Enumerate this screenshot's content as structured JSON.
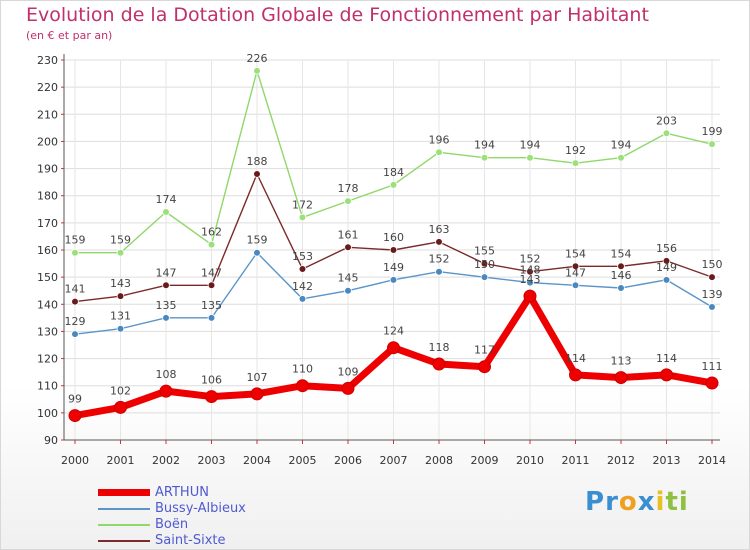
{
  "chart_data": {
    "type": "line",
    "title": "Evolution de la Dotation Globale de Fonctionnement par Habitant",
    "subtitle": "(en € et par an)",
    "xlabel": "",
    "ylabel": "",
    "ylim": [
      90,
      230
    ],
    "yticks": [
      90,
      100,
      110,
      120,
      130,
      140,
      150,
      160,
      170,
      180,
      190,
      200,
      210,
      220,
      230
    ],
    "x": [
      "2000",
      "2001",
      "2002",
      "2003",
      "2004",
      "2005",
      "2006",
      "2007",
      "2008",
      "2009",
      "2010",
      "2011",
      "2012",
      "2013",
      "2014"
    ],
    "legend_position": "bottom-left",
    "series": [
      {
        "name": "Boën",
        "color": "#8fd86a",
        "marker": "#9be07a",
        "values": [
          159,
          159,
          174,
          162,
          226,
          172,
          178,
          184,
          196,
          194,
          194,
          192,
          194,
          203,
          199
        ]
      },
      {
        "name": "Saint-Sixte",
        "color": "#7a2a2a",
        "marker": "#6a1a1a",
        "values": [
          141,
          143,
          147,
          147,
          188,
          153,
          161,
          160,
          163,
          155,
          152,
          154,
          154,
          156,
          150
        ]
      },
      {
        "name": "Bussy-Albieux",
        "color": "#5a94c8",
        "marker": "#4a88c0",
        "values": [
          129,
          131,
          135,
          135,
          159,
          142,
          145,
          149,
          152,
          150,
          148,
          147,
          146,
          149,
          139
        ]
      },
      {
        "name": "ARTHUN",
        "color": "#ee0000",
        "marker": "#ee0000",
        "values": [
          99,
          102,
          108,
          106,
          107,
          110,
          109,
          124,
          118,
          117,
          143,
          114,
          113,
          114,
          111
        ]
      }
    ],
    "legend": [
      "ARTHUN",
      "Bussy-Albieux",
      "Boën",
      "Saint-Sixte"
    ]
  },
  "logo": {
    "letters": [
      "P",
      "r",
      "o",
      "x",
      "i",
      "t",
      "i"
    ],
    "colors": [
      "#3a8fd0",
      "#3a8fd0",
      "#f0a020",
      "#3a8fd0",
      "#e8c020",
      "#90c040",
      "#90c040"
    ]
  }
}
